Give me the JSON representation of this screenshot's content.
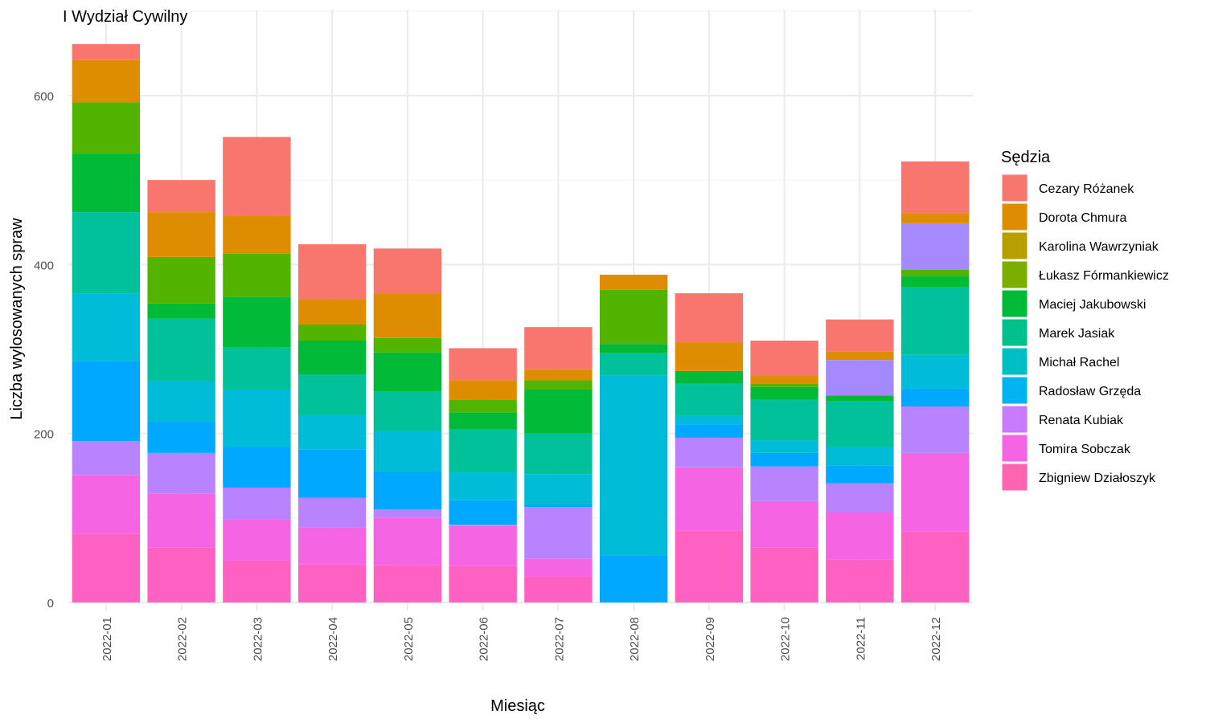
{
  "chart_data": {
    "type": "bar",
    "stacked": true,
    "title": "I Wydział Cywilny",
    "xlabel": "Miesiąc",
    "ylabel": "Liczba wylosowanych spraw",
    "ylim": [
      0,
      670
    ],
    "y_ticks": [
      0,
      200,
      400,
      600
    ],
    "grid": true,
    "legend_title": "Sędzia",
    "legend_position": "right",
    "categories": [
      "2022-01",
      "2022-02",
      "2022-03",
      "2022-04",
      "2022-05",
      "2022-06",
      "2022-07",
      "2022-08",
      "2022-09",
      "2022-10",
      "2022-11",
      "2022-12"
    ],
    "series": [
      {
        "name": "Zbigniew Działoszyk",
        "color": "#FF61C3",
        "values": [
          81,
          65,
          50,
          45,
          44,
          43,
          31,
          0,
          85,
          65,
          51,
          84
        ]
      },
      {
        "name": "Tomira Sobczak",
        "color": "#F564E3",
        "values": [
          70,
          64,
          48,
          44,
          56,
          48,
          21,
          0,
          75,
          55,
          56,
          93
        ]
      },
      {
        "name": "Renata Kubiak",
        "color": "#B983FF",
        "values": [
          40,
          48,
          38,
          35,
          10,
          1,
          61,
          0,
          35,
          41,
          34,
          55
        ]
      },
      {
        "name": "Radosław Grzęda",
        "color": "#00A9FF",
        "values": [
          95,
          37,
          48,
          57,
          45,
          29,
          3,
          56,
          16,
          16,
          21,
          21
        ]
      },
      {
        "name": "Michał Rachel",
        "color": "#00BCD8",
        "values": [
          80,
          48,
          68,
          41,
          48,
          33,
          36,
          213,
          10,
          15,
          22,
          40
        ]
      },
      {
        "name": "Marek Jasiak",
        "color": "#00C19A",
        "values": [
          96,
          74,
          50,
          48,
          47,
          51,
          48,
          26,
          38,
          48,
          54,
          80
        ]
      },
      {
        "name": "Maciej Jakubowski",
        "color": "#00BA38",
        "values": [
          69,
          18,
          60,
          40,
          46,
          20,
          52,
          11,
          15,
          15,
          7,
          13
        ]
      },
      {
        "name": "Łukasz Fórmankiewicz",
        "color": "#53B400",
        "values": [
          61,
          55,
          51,
          19,
          17,
          15,
          11,
          64,
          0,
          4,
          0,
          8
        ]
      },
      {
        "name": "Karolina Wawrzyniak",
        "color": "#A58AFF",
        "values": [
          0,
          0,
          0,
          0,
          0,
          0,
          0,
          0,
          0,
          0,
          42,
          55
        ]
      },
      {
        "name": "Dorota Chmura",
        "color": "#DE8C00",
        "values": [
          50,
          53,
          45,
          30,
          53,
          23,
          13,
          18,
          34,
          10,
          10,
          12
        ]
      },
      {
        "name": "Cezary Różanek",
        "color": "#F8766D",
        "values": [
          19,
          38,
          93,
          65,
          53,
          38,
          50,
          0,
          58,
          41,
          38,
          61
        ]
      }
    ],
    "legend_order": [
      "Cezary Różanek",
      "Dorota Chmura",
      "Karolina Wawrzyniak",
      "Łukasz Fórmankiewicz",
      "Maciej Jakubowski",
      "Marek Jasiak",
      "Michał Rachel",
      "Radosław Grzęda",
      "Renata Kubiak",
      "Tomira Sobczak",
      "Zbigniew Działoszyk"
    ],
    "legend_colors": {
      "Cezary Różanek": "#F8766D",
      "Dorota Chmura": "#DE8C00",
      "Karolina Wawrzyniak": "#B79F00",
      "Łukasz Fórmankiewicz": "#7CAE00",
      "Maciej Jakubowski": "#00BA38",
      "Marek Jasiak": "#00C08B",
      "Michał Rachel": "#00BFC4",
      "Radosław Grzęda": "#00B4F0",
      "Renata Kubiak": "#C77CFF",
      "Tomira Sobczak": "#F564E3",
      "Zbigniew Działoszyk": "#FF64B0"
    }
  }
}
